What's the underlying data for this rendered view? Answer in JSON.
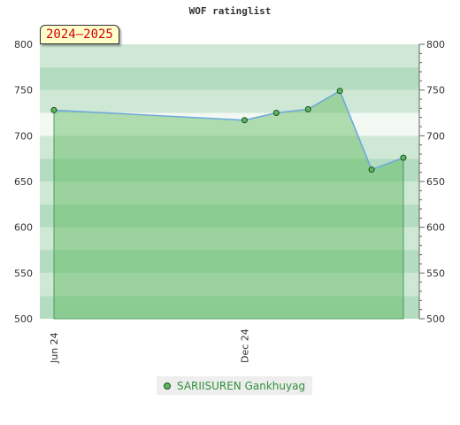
{
  "title": "WOF ratinglist",
  "period_badge": "2024–2025",
  "legend": {
    "series_name": "SARIISUREN Gankhuyag"
  },
  "colors": {
    "line": "#6fa8dc",
    "area_fill": "#5cb85c",
    "marker_fill": "#5cb85c",
    "marker_stroke": "#1e4d24",
    "band_light": "#b3dcc0",
    "band_mid": "#cfe8d6",
    "band_pale": "#f2f9f3"
  },
  "chart_data": {
    "type": "area",
    "title": "WOF ratinglist",
    "xlabel": "",
    "ylabel": "",
    "ylim": [
      500,
      800
    ],
    "y_ticks": [
      500,
      550,
      600,
      650,
      700,
      750,
      800
    ],
    "x_tick_labels": [
      "Jun 24",
      "Dec 24"
    ],
    "grid": false,
    "legend_position": "bottom-center",
    "series": [
      {
        "name": "SARIISUREN Gankhuyag",
        "points": [
          {
            "x": "2024-06",
            "y": 728
          },
          {
            "x": "2024-12",
            "y": 717
          },
          {
            "x": "2025-01",
            "y": 725
          },
          {
            "x": "2025-02",
            "y": 729
          },
          {
            "x": "2025-03",
            "y": 749
          },
          {
            "x": "2025-04",
            "y": 663
          },
          {
            "x": "2025-05",
            "y": 676
          }
        ]
      }
    ]
  }
}
